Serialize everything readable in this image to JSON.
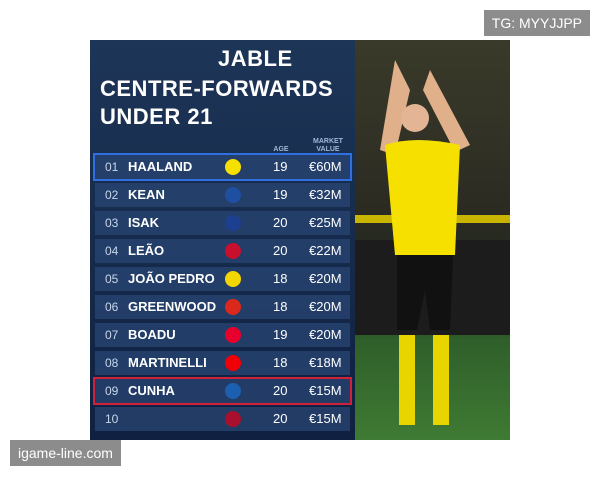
{
  "watermark_top": "TG: MYYJJPP",
  "watermark_bottom": "igame-line.com",
  "header": {
    "title_lines": [
      "JABLE",
      "CENTRE-FORWARDS",
      "UNDER 21"
    ],
    "age": "AGE",
    "market_value": "MARKET VALUE"
  },
  "table": {
    "rows": [
      {
        "rank": "01",
        "name": "HAALAND",
        "age": 19,
        "value": "€60M"
      },
      {
        "rank": "02",
        "name": "KEAN",
        "age": 19,
        "value": "€32M"
      },
      {
        "rank": "03",
        "name": "ISAK",
        "age": 20,
        "value": "€25M"
      },
      {
        "rank": "04",
        "name": "LEÃO",
        "age": 20,
        "value": "€22M"
      },
      {
        "rank": "05",
        "name": "JOÃO PEDRO",
        "age": 18,
        "value": "€20M"
      },
      {
        "rank": "06",
        "name": "GREENWOOD",
        "age": 18,
        "value": "€20M"
      },
      {
        "rank": "07",
        "name": "BOADU",
        "age": 19,
        "value": "€20M"
      },
      {
        "rank": "08",
        "name": "MARTINELLI",
        "age": 18,
        "value": "€18M"
      },
      {
        "rank": "09",
        "name": "CUNHA",
        "age": 20,
        "value": "€15M"
      },
      {
        "rank": "10",
        "name": null,
        "age": 20,
        "value": "€15M"
      }
    ]
  }
}
